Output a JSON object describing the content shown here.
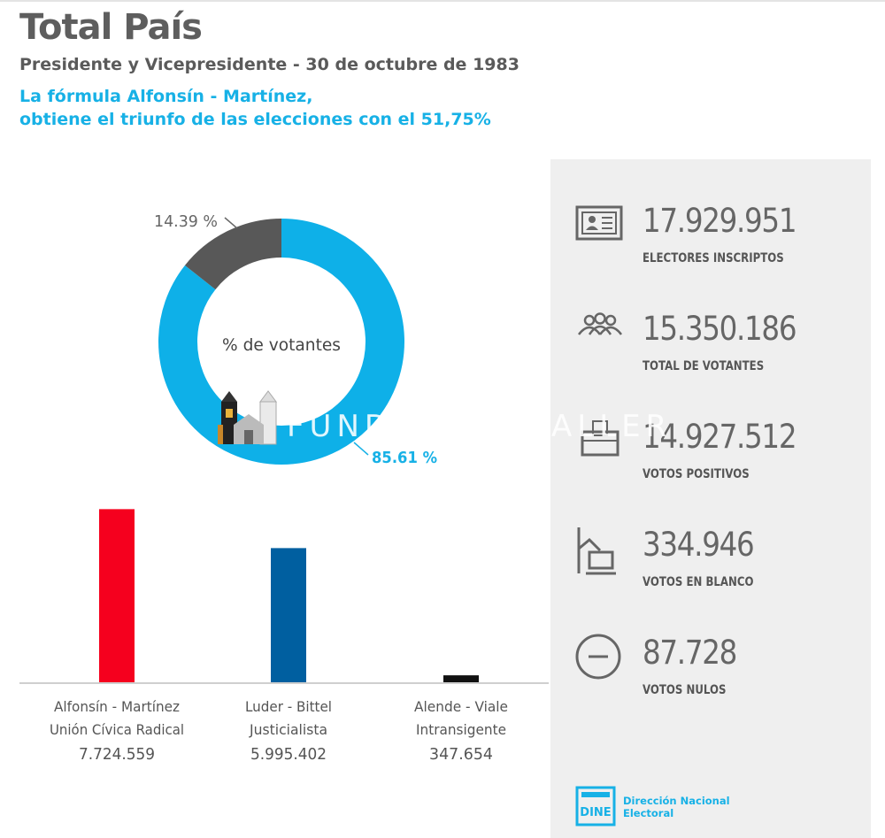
{
  "header": {
    "title": "Total País",
    "subtitle": "Presidente y Vicepresidente - 30 de octubre de 1983",
    "highlight_line1": "La fórmula Alfonsín - Martínez,",
    "highlight_line2": "obtiene el triunfo de las elecciones con el 51,75%"
  },
  "chart_data": [
    {
      "type": "pie",
      "center_label": "% de votantes",
      "slices": [
        {
          "label": "85.61 %",
          "value": 85.61,
          "color": "#0eb0e8"
        },
        {
          "label": "14.39 %",
          "value": 14.39,
          "color": "#585858"
        }
      ]
    },
    {
      "type": "bar",
      "categories": [
        {
          "line1": "Alfonsín - Martínez",
          "line2": "Unión Cívica Radical",
          "value_label": "7.724.559"
        },
        {
          "line1": "Luder - Bittel",
          "line2": "Justicialista",
          "value_label": "5.995.402"
        },
        {
          "line1": "Alende - Viale",
          "line2": "Intransigente",
          "value_label": "347.654"
        }
      ],
      "values": [
        7724559,
        5995402,
        347654
      ],
      "colors": [
        "#f5001e",
        "#005fa0",
        "#111111"
      ],
      "ylim": [
        0,
        8800000
      ]
    }
  ],
  "stats": [
    {
      "icon": "voter-id-icon",
      "number": "17.929.951",
      "label": "ELECTORES INSCRIPTOS"
    },
    {
      "icon": "people-icon",
      "number": "15.350.186",
      "label": "TOTAL DE VOTANTES"
    },
    {
      "icon": "ballot-box-icon",
      "number": "14.927.512",
      "label": "VOTOS POSITIVOS"
    },
    {
      "icon": "voting-booth-icon",
      "number": "334.946",
      "label": "VOTOS EN BLANCO"
    },
    {
      "icon": "minus-circle-icon",
      "number": "87.728",
      "label": "VOTOS NULOS"
    }
  ],
  "footer": {
    "logo_text": "DINE",
    "org_line1": "Dirección Nacional",
    "org_line2": "Electoral"
  },
  "watermark": {
    "text": "FUNDACIÓN TALLER"
  },
  "colors": {
    "accent": "#17b1e6",
    "panel_bg": "#efefef"
  }
}
